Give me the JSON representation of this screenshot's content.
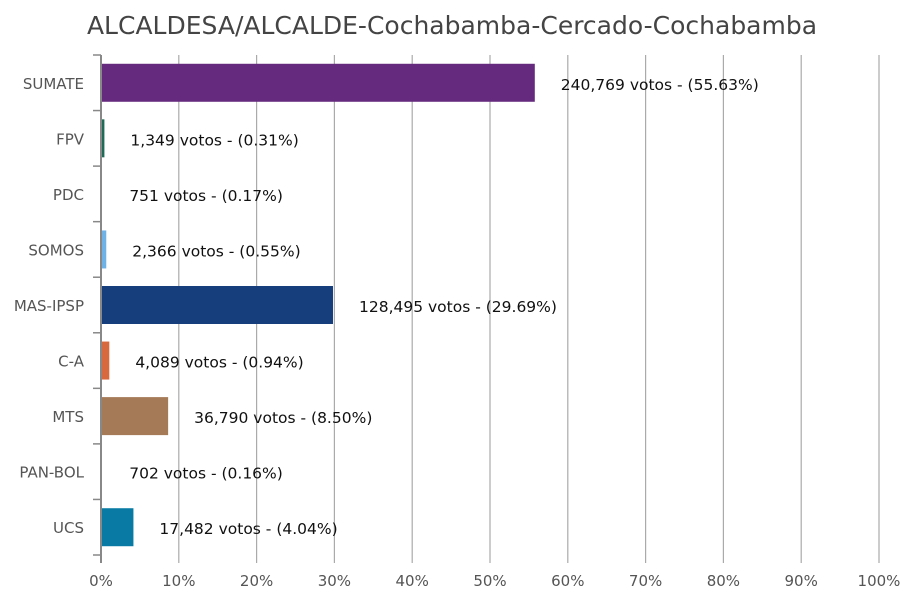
{
  "chart_data": {
    "type": "bar",
    "orientation": "horizontal",
    "title": "ALCALDESA/ALCALDE-Cochabamba-Cercado-Cochabamba",
    "categories": [
      "SUMATE",
      "FPV",
      "PDC",
      "SOMOS",
      "MAS-IPSP",
      "C-A",
      "MTS",
      "PAN-BOL",
      "UCS"
    ],
    "values": [
      55.63,
      0.31,
      0.17,
      0.55,
      29.69,
      0.94,
      8.5,
      0.16,
      4.04
    ],
    "votes": [
      240769,
      1349,
      751,
      2366,
      128495,
      4089,
      36790,
      702,
      17482
    ],
    "data_labels": [
      "240,769 votos - (55.63%)",
      "1,349 votos - (0.31%)",
      "751 votos - (0.17%)",
      "2,366 votos - (0.55%)",
      "128,495 votos - (29.69%)",
      "4,089 votos - (0.94%)",
      "36,790 votos - (8.50%)",
      "702 votos - (0.16%)",
      "17,482 votos - (4.04%)"
    ],
    "colors": [
      "#652a7e",
      "#1f6b55",
      "#ffffff",
      "#6fb3e6",
      "#163d7c",
      "#d8693f",
      "#a57a57",
      "#ffffff",
      "#087aa3"
    ],
    "xlim": [
      0,
      100
    ],
    "x_ticks": [
      "0%",
      "10%",
      "20%",
      "30%",
      "40%",
      "50%",
      "60%",
      "70%",
      "80%",
      "90%",
      "100%"
    ],
    "grid": true
  }
}
